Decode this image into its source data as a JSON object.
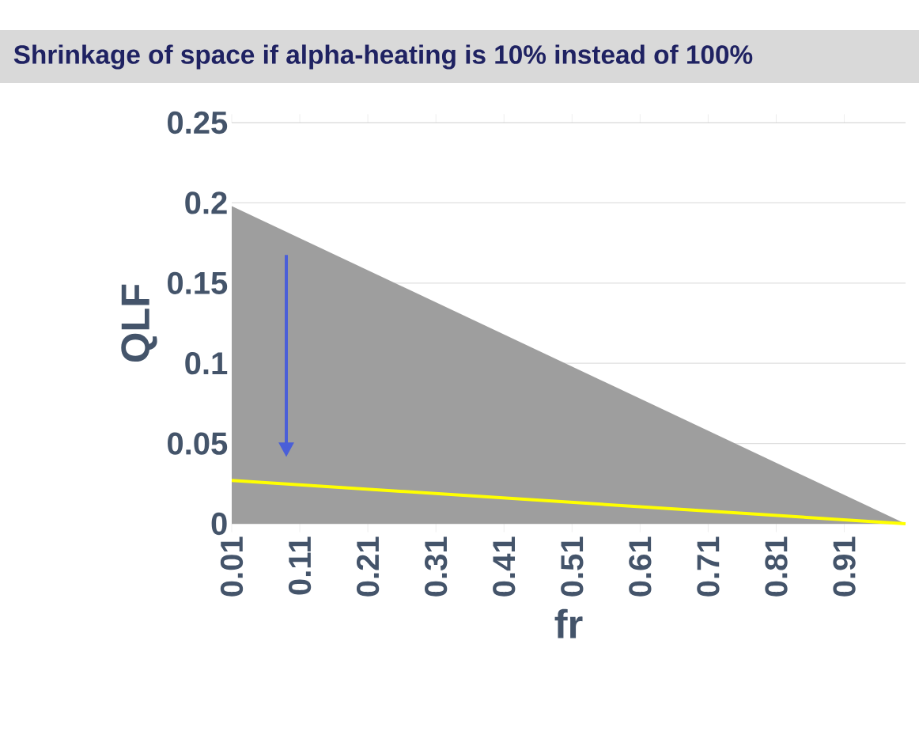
{
  "chart_data": {
    "type": "area",
    "title": "Shrinkage of space if alpha-heating is 10% instead of 100%",
    "xlabel": "fr",
    "ylabel": "QLF",
    "series": [
      {
        "color": "#9e9e9e",
        "values": [
          0.198,
          0.0
        ]
      },
      {
        "type": "line",
        "color": "#ffff00",
        "values": [
          0.027,
          0.0
        ]
      }
    ],
    "x": [
      0.01,
      1.0
    ],
    "xlim": [
      0.01,
      1.0
    ],
    "xticks": [
      0.01,
      0.11,
      0.21,
      0.31,
      0.41,
      0.51,
      0.61,
      0.71,
      0.81,
      0.91
    ],
    "ylim": [
      0,
      0.25
    ],
    "yticks": [
      0,
      0.05,
      0.1,
      0.15,
      0.2,
      0.25
    ],
    "grid": "y"
  }
}
